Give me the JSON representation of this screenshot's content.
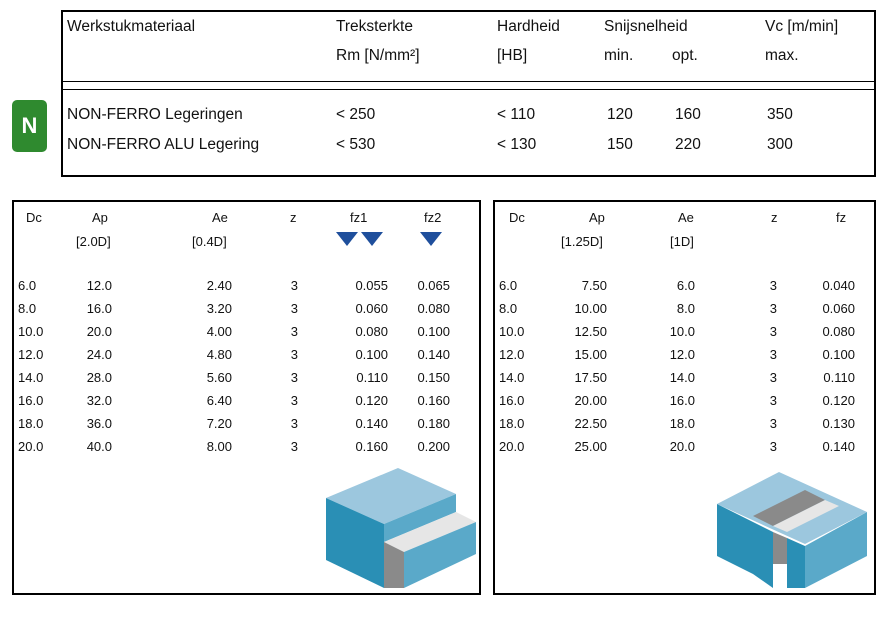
{
  "material_table": {
    "headers": {
      "material": "Werkstukmateriaal",
      "tensile": "Treksterkte",
      "tensile_unit": "Rm [N/mm²]",
      "hardness": "Hardheid",
      "hardness_unit": "[HB]",
      "cutting_speed": "Snijsnelheid",
      "vc": "Vc [m/min]",
      "min": "min.",
      "opt": "opt.",
      "max": "max."
    },
    "badge": "N",
    "rows": [
      {
        "material": "NON-FERRO Legeringen",
        "tensile": "< 250",
        "hardness": "< 110",
        "min": "120",
        "opt": "160",
        "max": "350"
      },
      {
        "material": "NON-FERRO ALU Legering",
        "tensile": "< 530",
        "hardness": "< 130",
        "min": "150",
        "opt": "220",
        "max": "300"
      }
    ]
  },
  "left_table": {
    "headers": {
      "dc": "Dc",
      "ap": "Ap",
      "ae": "Ae",
      "z": "z",
      "fz1": "fz1",
      "fz2": "fz2",
      "ap_sub": "[2.0D]",
      "ae_sub": "[0.4D]"
    },
    "rows": [
      [
        "6.0",
        "12.0",
        "2.40",
        "3",
        "0.055",
        "0.065"
      ],
      [
        "8.0",
        "16.0",
        "3.20",
        "3",
        "0.060",
        "0.080"
      ],
      [
        "10.0",
        "20.0",
        "4.00",
        "3",
        "0.080",
        "0.100"
      ],
      [
        "12.0",
        "24.0",
        "4.80",
        "3",
        "0.100",
        "0.140"
      ],
      [
        "14.0",
        "28.0",
        "5.60",
        "3",
        "0.110",
        "0.150"
      ],
      [
        "16.0",
        "32.0",
        "6.40",
        "3",
        "0.120",
        "0.160"
      ],
      [
        "18.0",
        "36.0",
        "7.20",
        "3",
        "0.140",
        "0.180"
      ],
      [
        "20.0",
        "40.0",
        "8.00",
        "3",
        "0.160",
        "0.200"
      ]
    ]
  },
  "right_table": {
    "headers": {
      "dc": "Dc",
      "ap": "Ap",
      "ae": "Ae",
      "z": "z",
      "fz": "fz",
      "ap_sub": "[1.25D]",
      "ae_sub": "[1D]"
    },
    "rows": [
      [
        "6.0",
        "7.50",
        "6.0",
        "3",
        "0.040"
      ],
      [
        "8.0",
        "10.00",
        "8.0",
        "3",
        "0.060"
      ],
      [
        "10.0",
        "12.50",
        "10.0",
        "3",
        "0.080"
      ],
      [
        "12.0",
        "15.00",
        "12.0",
        "3",
        "0.100"
      ],
      [
        "14.0",
        "17.50",
        "14.0",
        "3",
        "0.110"
      ],
      [
        "16.0",
        "20.00",
        "16.0",
        "3",
        "0.120"
      ],
      [
        "18.0",
        "22.50",
        "18.0",
        "3",
        "0.130"
      ],
      [
        "20.0",
        "25.00",
        "20.0",
        "3",
        "0.140"
      ]
    ]
  },
  "colors": {
    "badge": "#2f8a2f",
    "arrow": "#1f4f9c",
    "block_top": "#9cc7de",
    "block_front": "#2a8fb5",
    "block_side": "#5aa9c9"
  }
}
